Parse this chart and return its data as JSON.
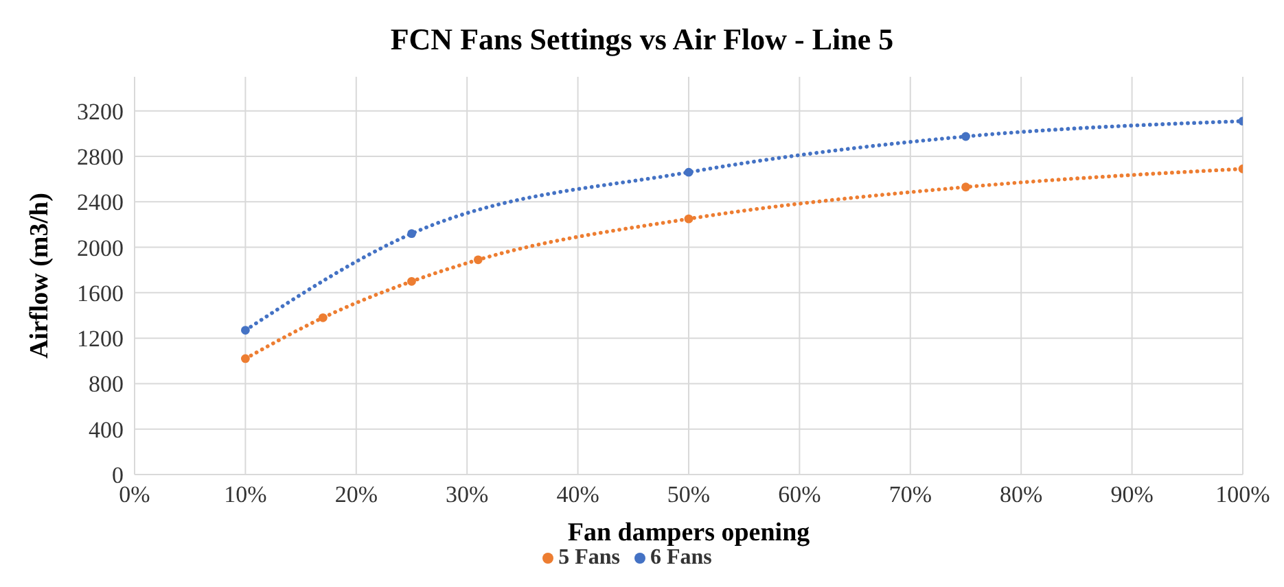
{
  "chart_data": {
    "type": "line",
    "title": "FCN Fans Settings vs Air Flow - Line 5",
    "xlabel": "Fan dampers opening",
    "ylabel": "Airflow (m3/h)",
    "xlim": [
      0,
      100
    ],
    "xticks": [
      {
        "value": 0,
        "label": "0%"
      },
      {
        "value": 10,
        "label": "10%"
      },
      {
        "value": 20,
        "label": "20%"
      },
      {
        "value": 30,
        "label": "30%"
      },
      {
        "value": 40,
        "label": "40%"
      },
      {
        "value": 50,
        "label": "50%"
      },
      {
        "value": 60,
        "label": "60%"
      },
      {
        "value": 70,
        "label": "70%"
      },
      {
        "value": 80,
        "label": "80%"
      },
      {
        "value": 90,
        "label": "90%"
      },
      {
        "value": 100,
        "label": "100%"
      }
    ],
    "ylim": [
      0,
      3500
    ],
    "yticks": [
      0,
      400,
      800,
      1200,
      1600,
      2000,
      2400,
      2800,
      3200
    ],
    "series": [
      {
        "name": "6 Fans",
        "color": "#4472c4",
        "x": [
          10,
          25,
          50,
          75,
          100
        ],
        "values": [
          1270,
          2120,
          2660,
          2975,
          3110
        ]
      },
      {
        "name": "5 Fans",
        "color": "#ed7d31",
        "x": [
          10,
          17,
          25,
          31,
          50,
          75,
          100
        ],
        "values": [
          1020,
          1380,
          1700,
          1890,
          2250,
          2530,
          2690
        ]
      }
    ],
    "grid": true,
    "legend": "bottom",
    "marker": "circle",
    "line_style": "dotted"
  }
}
